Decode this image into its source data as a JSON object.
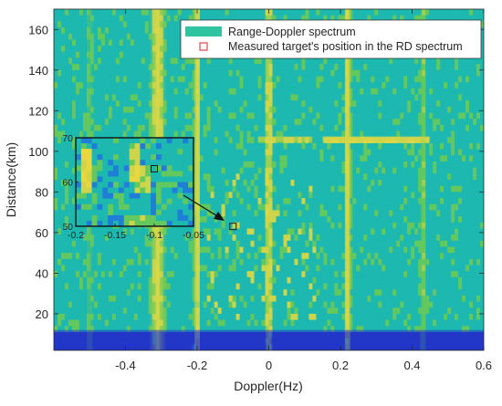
{
  "chart_data": {
    "type": "heatmap",
    "title": "",
    "xlabel": "Doppler(Hz)",
    "ylabel": "Distance(km)",
    "xlim": [
      -0.6,
      0.6
    ],
    "ylim": [
      2,
      170
    ],
    "xticks": [
      -0.4,
      -0.2,
      0,
      0.2,
      0.4,
      0.6
    ],
    "xtick_labels": [
      "-0.4",
      "-0.2",
      "0",
      "0.2",
      "0.4",
      "0.6"
    ],
    "yticks": [
      20,
      40,
      60,
      80,
      100,
      120,
      140,
      160
    ],
    "ytick_labels": [
      "20",
      "40",
      "60",
      "80",
      "100",
      "120",
      "140",
      "160"
    ],
    "grid": false,
    "legend_position": "top-right",
    "legend": [
      {
        "label": "Range-Doppler spectrum",
        "marker": "filled-patch",
        "color": "#2ec4a0"
      },
      {
        "label": "Measured target's position in the RD spectrum",
        "marker": "hollow-square",
        "color": "#e0353b"
      }
    ],
    "target_point": {
      "x": -0.1,
      "y": 63
    },
    "inset": {
      "xlim": [
        -0.2,
        -0.05
      ],
      "ylim": [
        50,
        70
      ],
      "xticks": [
        -0.2,
        -0.15,
        -0.1,
        -0.05
      ],
      "xtick_labels": [
        "-0.2",
        "-0.15",
        "-0.1",
        "-0.05"
      ],
      "yticks": [
        50,
        60,
        70
      ],
      "ytick_labels": [
        "50",
        "60",
        "70"
      ],
      "target_point": {
        "x": -0.1,
        "y": 63
      }
    },
    "spectral_features": [
      {
        "kind": "vertical-line",
        "x": -0.5,
        "strength": 0.2
      },
      {
        "kind": "vertical-band",
        "x": -0.31,
        "width": 0.05,
        "strength": 0.55
      },
      {
        "kind": "vertical-line",
        "x": -0.2,
        "strength": 0.6
      },
      {
        "kind": "vertical-line",
        "x": 0.0,
        "strength": 0.55
      },
      {
        "kind": "vertical-line",
        "x": 0.22,
        "strength": 0.65
      },
      {
        "kind": "vertical-line",
        "x": 0.43,
        "strength": 0.3
      },
      {
        "kind": "horizontal-line",
        "y": 106,
        "x_from": 0.15,
        "x_to": 0.45,
        "strength": 0.55
      },
      {
        "kind": "horizontal-line",
        "y": 106,
        "x_from": -0.03,
        "x_to": 0.12,
        "strength": 0.35
      },
      {
        "kind": "low-range-floor",
        "y_from": 2,
        "y_to": 12,
        "strength": -0.9
      }
    ],
    "colors": {
      "low": "#2236c8",
      "mid_low": "#1f7fd8",
      "mid": "#1db8b0",
      "mid_high": "#63c85e",
      "high": "#cfd54a",
      "peak": "#e8d840",
      "target_marker": "#e0353b"
    }
  }
}
